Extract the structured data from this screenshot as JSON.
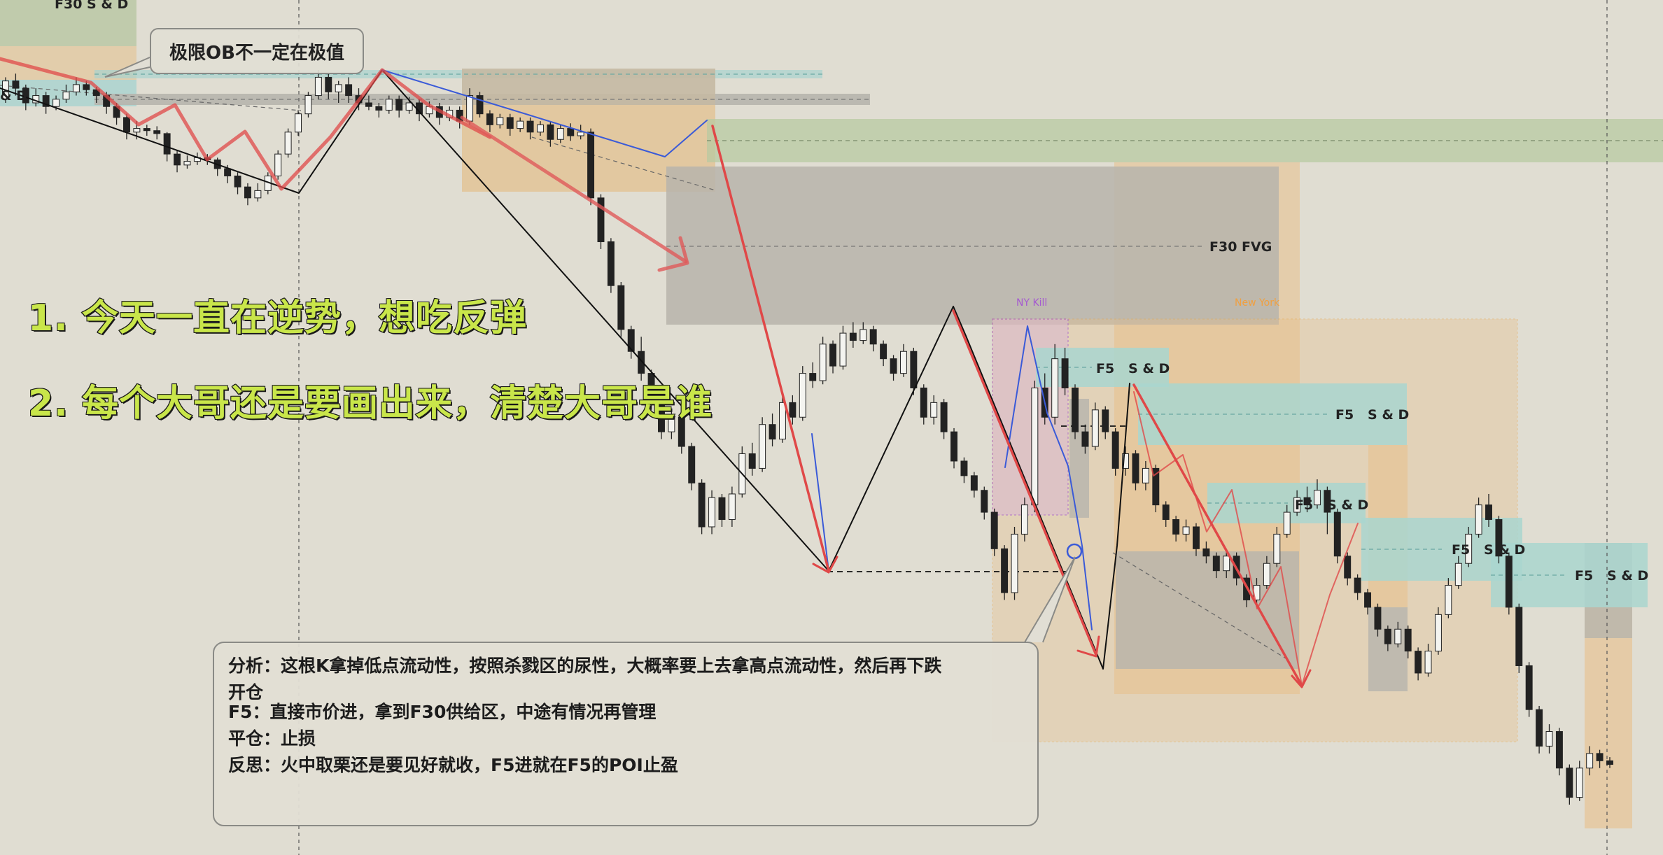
{
  "annotation_callout": "极限OB不一定在极值",
  "headlines": [
    "1. 今天一直在逆势，想吃反弹",
    "2. 每个大哥还是要画出来，清楚大哥是谁"
  ],
  "analysis_note": {
    "line1": "分析：这根K拿掉低点流动性，按照杀戮区的尿性，大概率要上去拿高点流动性，然后再下跌",
    "line2": "开仓",
    "line3": "F5：直接市价进，拿到F30供给区，中途有情况再管理",
    "line4": "平仓：止损",
    "line5": "反思：火中取栗还是要见好就收，F5进就在F5的POI止盈"
  },
  "chart_data": {
    "type": "candlestick",
    "title": "",
    "xlabel": "",
    "ylabel": "",
    "grid": false,
    "zones": [
      {
        "label": "F30  S & D",
        "color": "#b9c9a0"
      },
      {
        "label": "& D",
        "color": "#a8d3cf"
      },
      {
        "label": "F30  FVG",
        "color": "#b7b4ac"
      },
      {
        "label": "F5   S & D",
        "color": "#a9d6cf"
      },
      {
        "label": "F5   S & D",
        "color": "#a9d6cf"
      },
      {
        "label": "F5   S & D",
        "color": "#a9d6cf"
      },
      {
        "label": "F5   S & D",
        "color": "#a9d6cf"
      },
      {
        "label": "F5   S & D",
        "color": "#a9d6cf"
      }
    ],
    "sessions": [
      {
        "label": "NY Kill",
        "color": "#a55ad0"
      },
      {
        "label": "New York",
        "color": "#f0a040"
      }
    ],
    "colors": {
      "background": "#e0ddd2",
      "bull": "#f4f4f0",
      "bear": "#222222",
      "trend_red": "#e04848",
      "trend_blue": "#3a5ad8"
    },
    "candles": [
      [
        7.15,
        7.4,
        7.45,
        7.1
      ],
      [
        7.4,
        7.3,
        7.5,
        7.2
      ],
      [
        7.3,
        7.1,
        7.35,
        7.0
      ],
      [
        7.1,
        7.2,
        7.3,
        7.05
      ],
      [
        7.2,
        7.05,
        7.25,
        6.95
      ],
      [
        7.05,
        7.15,
        7.2,
        7.0
      ],
      [
        7.15,
        7.25,
        7.35,
        7.1
      ],
      [
        7.25,
        7.35,
        7.45,
        7.2
      ],
      [
        7.35,
        7.28,
        7.4,
        7.2
      ],
      [
        7.28,
        7.2,
        7.32,
        7.1
      ],
      [
        7.2,
        7.05,
        7.25,
        6.95
      ],
      [
        7.05,
        6.9,
        7.1,
        6.8
      ],
      [
        6.9,
        6.7,
        6.95,
        6.6
      ],
      [
        6.7,
        6.75,
        6.85,
        6.6
      ],
      [
        6.75,
        6.72,
        6.8,
        6.65
      ],
      [
        6.72,
        6.68,
        6.78,
        6.6
      ],
      [
        6.68,
        6.4,
        6.7,
        6.3
      ],
      [
        6.4,
        6.25,
        6.45,
        6.15
      ],
      [
        6.25,
        6.3,
        6.38,
        6.2
      ],
      [
        6.3,
        6.35,
        6.42,
        6.25
      ],
      [
        6.35,
        6.32,
        6.4,
        6.25
      ],
      [
        6.32,
        6.2,
        6.35,
        6.1
      ],
      [
        6.2,
        6.1,
        6.25,
        6.0
      ],
      [
        6.1,
        5.95,
        6.15,
        5.85
      ],
      [
        5.95,
        5.8,
        6.0,
        5.7
      ],
      [
        5.8,
        5.9,
        6.0,
        5.75
      ],
      [
        5.9,
        6.1,
        6.15,
        5.85
      ],
      [
        6.1,
        6.4,
        6.45,
        6.05
      ],
      [
        6.4,
        6.7,
        6.75,
        6.35
      ],
      [
        6.7,
        6.95,
        7.0,
        6.65
      ],
      [
        6.95,
        7.2,
        7.25,
        6.9
      ],
      [
        7.2,
        7.45,
        7.55,
        7.15
      ],
      [
        7.45,
        7.25,
        7.5,
        7.15
      ],
      [
        7.25,
        7.35,
        7.4,
        7.1
      ],
      [
        7.35,
        7.2,
        7.45,
        7.1
      ],
      [
        7.2,
        7.1,
        7.3,
        7.0
      ],
      [
        7.1,
        7.05,
        7.2,
        7.0
      ],
      [
        7.05,
        7.0,
        7.1,
        6.9
      ],
      [
        7.0,
        7.15,
        7.2,
        6.95
      ],
      [
        7.15,
        7.0,
        7.2,
        6.9
      ],
      [
        7.0,
        7.1,
        7.18,
        6.95
      ],
      [
        7.1,
        6.95,
        7.15,
        6.85
      ],
      [
        6.95,
        7.05,
        7.12,
        6.9
      ],
      [
        7.05,
        6.9,
        7.1,
        6.8
      ],
      [
        6.9,
        7.0,
        7.05,
        6.85
      ],
      [
        7.0,
        6.85,
        7.05,
        6.75
      ],
      [
        6.85,
        7.2,
        7.3,
        6.8
      ],
      [
        7.2,
        6.95,
        7.25,
        6.9
      ],
      [
        6.95,
        6.8,
        7.0,
        6.7
      ],
      [
        6.8,
        6.9,
        6.95,
        6.75
      ],
      [
        6.9,
        6.75,
        6.95,
        6.65
      ],
      [
        6.75,
        6.85,
        6.9,
        6.7
      ],
      [
        6.85,
        6.7,
        6.9,
        6.6
      ],
      [
        6.7,
        6.8,
        6.85,
        6.65
      ],
      [
        6.8,
        6.6,
        6.85,
        6.5
      ],
      [
        6.6,
        6.75,
        6.8,
        6.55
      ],
      [
        6.75,
        6.65,
        6.82,
        6.58
      ],
      [
        6.65,
        6.7,
        6.8,
        6.6
      ],
      [
        6.7,
        5.8,
        6.75,
        5.7
      ],
      [
        5.8,
        5.2,
        5.85,
        5.1
      ],
      [
        5.2,
        4.6,
        5.25,
        4.5
      ],
      [
        4.6,
        4.0,
        4.65,
        3.9
      ],
      [
        4.0,
        3.7,
        4.05,
        3.6
      ],
      [
        3.7,
        3.4,
        3.9,
        3.3
      ],
      [
        3.4,
        3.0,
        3.45,
        2.9
      ],
      [
        3.0,
        2.6,
        3.05,
        2.5
      ],
      [
        2.6,
        2.8,
        2.9,
        2.5
      ],
      [
        2.8,
        2.4,
        2.85,
        2.3
      ],
      [
        2.4,
        1.9,
        2.45,
        1.8
      ],
      [
        1.9,
        1.3,
        1.95,
        1.2
      ],
      [
        1.3,
        1.7,
        1.8,
        1.2
      ],
      [
        1.7,
        1.4,
        1.75,
        1.3
      ],
      [
        1.4,
        1.75,
        1.85,
        1.3
      ],
      [
        1.75,
        2.3,
        2.4,
        1.7
      ],
      [
        2.3,
        2.1,
        2.45,
        2.0
      ],
      [
        2.1,
        2.7,
        2.8,
        2.05
      ],
      [
        2.7,
        2.5,
        2.85,
        2.4
      ],
      [
        2.5,
        3.0,
        3.1,
        2.45
      ],
      [
        3.0,
        2.8,
        3.1,
        2.7
      ],
      [
        2.8,
        3.4,
        3.5,
        2.75
      ],
      [
        3.4,
        3.3,
        3.55,
        3.2
      ],
      [
        3.3,
        3.8,
        3.9,
        3.25
      ],
      [
        3.8,
        3.5,
        3.85,
        3.4
      ],
      [
        3.5,
        3.95,
        4.05,
        3.45
      ],
      [
        3.95,
        3.85,
        4.1,
        3.75
      ],
      [
        3.85,
        4.0,
        4.1,
        3.8
      ],
      [
        4.0,
        3.8,
        4.05,
        3.7
      ],
      [
        3.8,
        3.6,
        3.85,
        3.5
      ],
      [
        3.6,
        3.4,
        3.65,
        3.3
      ],
      [
        3.4,
        3.7,
        3.8,
        3.35
      ],
      [
        3.7,
        3.2,
        3.75,
        3.1
      ],
      [
        3.2,
        2.8,
        3.25,
        2.7
      ],
      [
        2.8,
        3.0,
        3.1,
        2.7
      ],
      [
        3.0,
        2.6,
        3.05,
        2.5
      ],
      [
        2.6,
        2.2,
        2.65,
        2.1
      ],
      [
        2.2,
        2.0,
        2.25,
        1.9
      ],
      [
        2.0,
        1.8,
        2.05,
        1.7
      ],
      [
        1.8,
        1.5,
        1.85,
        1.4
      ],
      [
        1.5,
        1.0,
        1.55,
        0.9
      ],
      [
        1.0,
        0.4,
        1.05,
        0.3
      ],
      [
        0.4,
        1.2,
        1.3,
        0.3
      ],
      [
        1.2,
        1.6,
        1.7,
        1.1
      ],
      [
        1.6,
        3.2,
        3.3,
        1.5
      ],
      [
        3.2,
        2.8,
        3.4,
        2.7
      ],
      [
        2.8,
        3.6,
        3.8,
        2.7
      ],
      [
        3.6,
        3.2,
        3.75,
        3.1
      ],
      [
        3.2,
        2.6,
        3.25,
        2.5
      ],
      [
        2.6,
        2.4,
        2.7,
        2.3
      ],
      [
        2.4,
        2.9,
        3.0,
        2.35
      ],
      [
        2.9,
        2.6,
        2.95,
        2.5
      ],
      [
        2.6,
        2.1,
        2.65,
        2.0
      ],
      [
        2.1,
        2.3,
        2.4,
        2.0
      ],
      [
        2.3,
        1.9,
        2.35,
        1.8
      ],
      [
        1.9,
        2.1,
        2.2,
        1.8
      ],
      [
        2.1,
        1.6,
        2.15,
        1.5
      ],
      [
        1.6,
        1.4,
        1.65,
        1.3
      ],
      [
        1.4,
        1.2,
        1.45,
        1.1
      ],
      [
        1.2,
        1.3,
        1.4,
        1.1
      ],
      [
        1.3,
        1.0,
        1.35,
        0.9
      ],
      [
        1.0,
        0.9,
        1.1,
        0.8
      ],
      [
        0.9,
        0.7,
        0.95,
        0.6
      ],
      [
        0.7,
        0.9,
        1.0,
        0.6
      ],
      [
        0.9,
        0.6,
        0.95,
        0.5
      ],
      [
        0.6,
        0.3,
        0.65,
        0.2
      ],
      [
        0.3,
        0.5,
        0.6,
        0.2
      ],
      [
        0.5,
        0.8,
        0.9,
        0.45
      ],
      [
        0.8,
        1.2,
        1.3,
        0.75
      ],
      [
        1.2,
        1.5,
        1.6,
        1.15
      ],
      [
        1.5,
        1.7,
        1.8,
        1.45
      ],
      [
        1.7,
        1.6,
        1.85,
        1.5
      ],
      [
        1.6,
        1.8,
        1.95,
        1.55
      ],
      [
        1.8,
        1.5,
        1.85,
        1.2
      ],
      [
        1.5,
        0.9,
        1.55,
        0.8
      ],
      [
        0.9,
        0.6,
        0.95,
        0.5
      ],
      [
        0.6,
        0.4,
        0.65,
        0.3
      ],
      [
        0.4,
        0.2,
        0.45,
        0.1
      ],
      [
        0.2,
        -0.1,
        0.25,
        -0.2
      ],
      [
        -0.1,
        -0.3,
        -0.05,
        -0.4
      ],
      [
        -0.3,
        -0.1,
        0.0,
        -0.35
      ],
      [
        -0.1,
        -0.4,
        -0.05,
        -0.5
      ],
      [
        -0.4,
        -0.7,
        -0.35,
        -0.8
      ],
      [
        -0.7,
        -0.4,
        -0.3,
        -0.75
      ],
      [
        -0.4,
        0.1,
        0.2,
        -0.45
      ],
      [
        0.1,
        0.5,
        0.6,
        0.05
      ],
      [
        0.5,
        0.8,
        0.9,
        0.45
      ],
      [
        0.8,
        1.2,
        1.3,
        0.75
      ],
      [
        1.2,
        1.6,
        1.7,
        1.15
      ],
      [
        1.6,
        1.4,
        1.75,
        1.3
      ],
      [
        1.4,
        0.9,
        1.45,
        0.8
      ],
      [
        0.9,
        0.2,
        0.95,
        0.1
      ],
      [
        0.2,
        -0.6,
        0.25,
        -0.7
      ],
      [
        -0.6,
        -1.2,
        -0.55,
        -1.3
      ],
      [
        -1.2,
        -1.7,
        -1.15,
        -1.8
      ],
      [
        -1.7,
        -1.5,
        -1.4,
        -1.8
      ],
      [
        -1.5,
        -2.0,
        -1.45,
        -2.1
      ],
      [
        -2.0,
        -2.4,
        -1.95,
        -2.5
      ],
      [
        -2.4,
        -2.0,
        -1.9,
        -2.45
      ],
      [
        -2.0,
        -1.8,
        -1.7,
        -2.1
      ],
      [
        -1.8,
        -1.9,
        -1.75,
        -2.0
      ],
      [
        -1.9,
        -1.95,
        -1.85,
        -2.0
      ]
    ]
  }
}
